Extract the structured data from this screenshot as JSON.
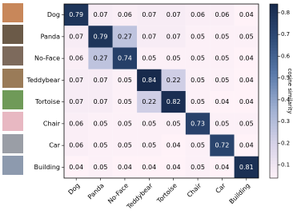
{
  "chart_data": {
    "type": "heatmap",
    "x_categories": [
      "Dog",
      "Panda",
      "No-Face",
      "Teddybear",
      "Tortoise",
      "Chair",
      "Car",
      "Building"
    ],
    "y_categories": [
      "Dog",
      "Panda",
      "No-Face",
      "Teddybear",
      "Tortoise",
      "Chair",
      "Car",
      "Building"
    ],
    "values": [
      [
        0.79,
        0.07,
        0.06,
        0.07,
        0.07,
        0.06,
        0.06,
        0.04
      ],
      [
        0.07,
        0.79,
        0.27,
        0.07,
        0.07,
        0.05,
        0.05,
        0.05
      ],
      [
        0.06,
        0.27,
        0.74,
        0.05,
        0.05,
        0.05,
        0.05,
        0.04
      ],
      [
        0.07,
        0.07,
        0.05,
        0.84,
        0.22,
        0.05,
        0.05,
        0.04
      ],
      [
        0.07,
        0.07,
        0.05,
        0.22,
        0.82,
        0.05,
        0.04,
        0.04
      ],
      [
        0.06,
        0.05,
        0.05,
        0.05,
        0.05,
        0.73,
        0.05,
        0.05
      ],
      [
        0.06,
        0.05,
        0.05,
        0.05,
        0.04,
        0.05,
        0.72,
        0.04
      ],
      [
        0.04,
        0.05,
        0.04,
        0.04,
        0.04,
        0.05,
        0.04,
        0.81
      ]
    ],
    "zlim": [
      0.04,
      0.84
    ],
    "colorbar_ticks": [
      0.1,
      0.2,
      0.3,
      0.4,
      0.5,
      0.6,
      0.7,
      0.8
    ],
    "colorbar_label": "cosine similarity",
    "colormap": [
      "#fff2f8",
      "#d6d2e8",
      "#9fb0d2",
      "#5a7aaa",
      "#2f4c78",
      "#172a4c"
    ]
  }
}
